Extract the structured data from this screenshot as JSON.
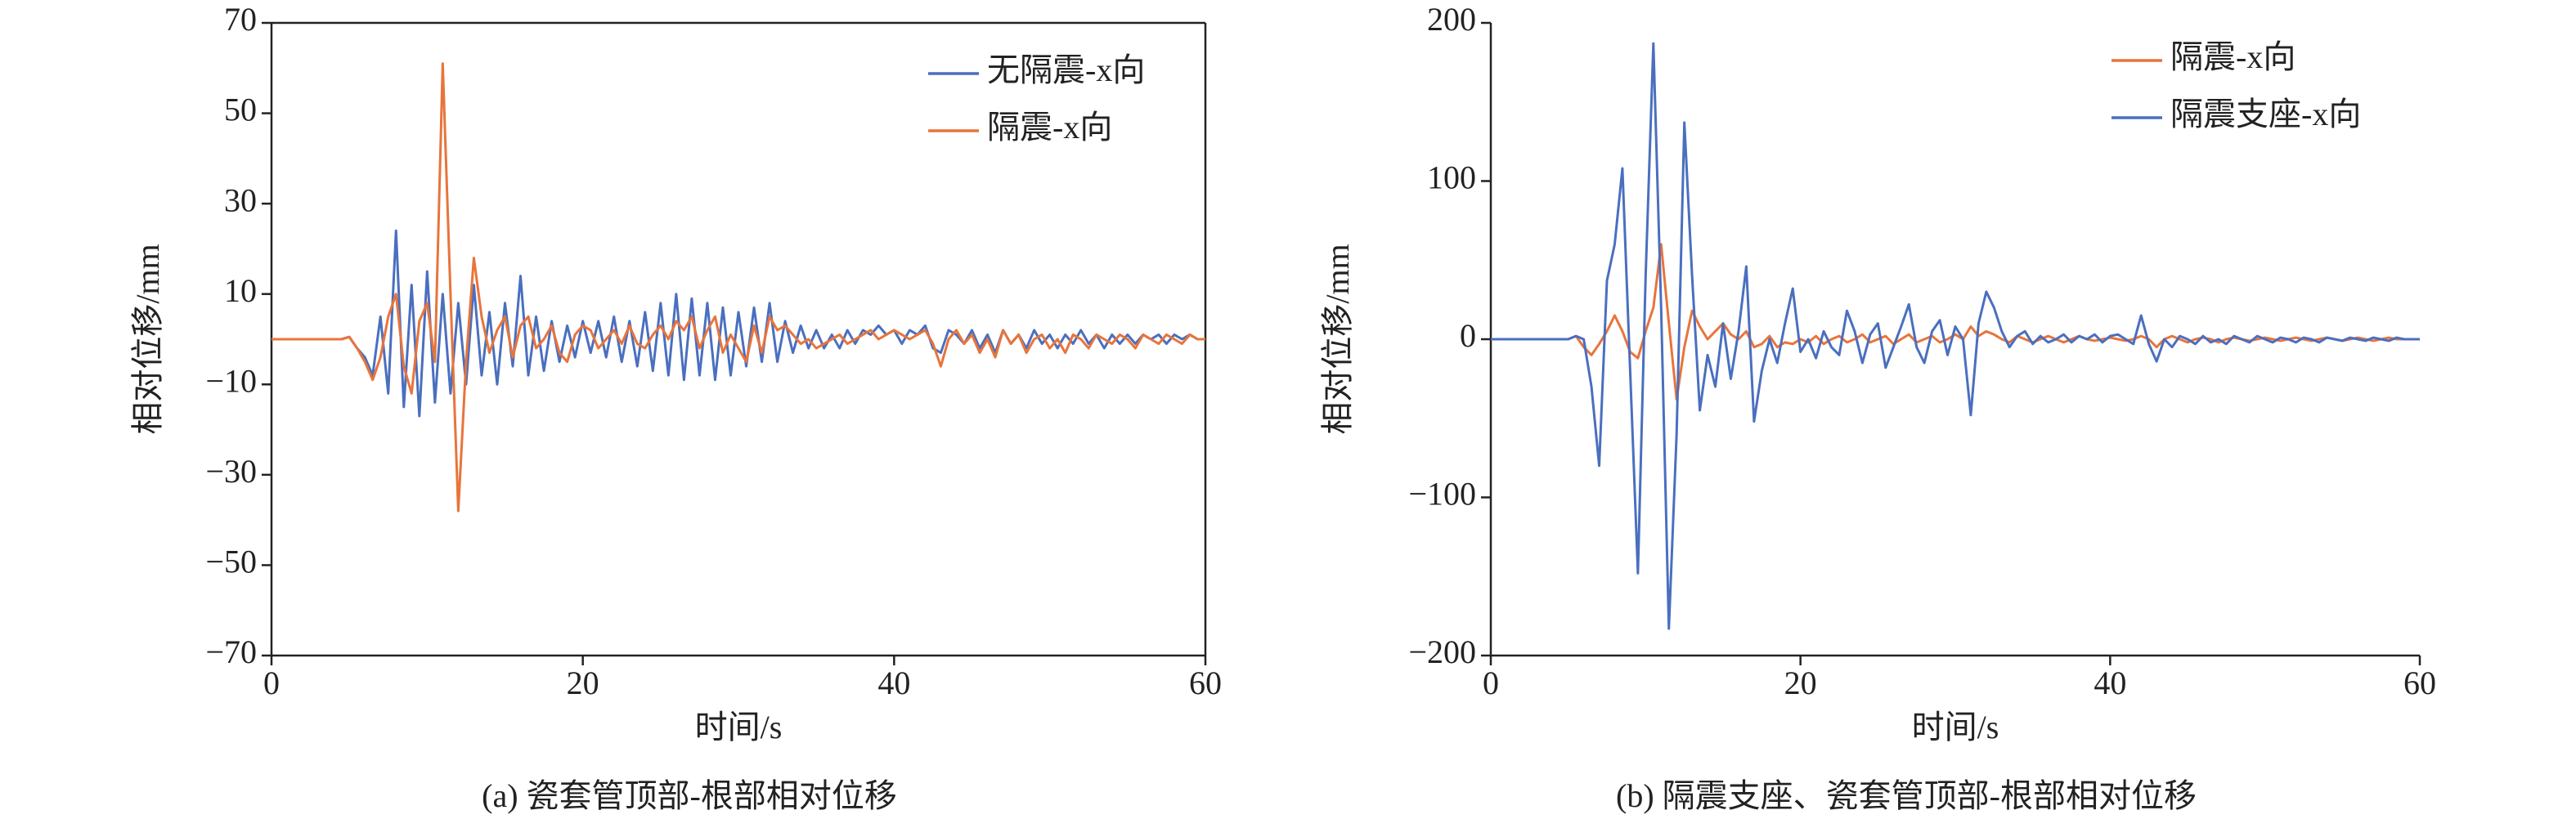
{
  "chart_data": [
    {
      "type": "line",
      "title": "(a) 瓷套管顶部-根部相对位移",
      "xlabel": "时间/s",
      "ylabel": "相对位移/mm",
      "legend": "upper right",
      "xlim": [
        0,
        60
      ],
      "xticks": [
        0,
        20,
        40,
        60
      ],
      "ylim": [
        -70,
        70
      ],
      "yticks": [
        {
          "value": -70,
          "label": "−70"
        },
        {
          "value": -50,
          "label": "−50"
        },
        {
          "value": -30,
          "label": "−30"
        },
        {
          "value": -10,
          "label": "−10"
        },
        10,
        30,
        50,
        70
      ],
      "x": [
        0,
        0.5,
        1,
        1.5,
        2,
        2.5,
        3,
        3.5,
        4,
        4.5,
        5,
        5.5,
        6,
        6.5,
        7,
        7.5,
        8,
        8.5,
        9,
        9.5,
        10,
        10.5,
        11,
        11.5,
        12,
        12.5,
        13,
        13.5,
        14,
        14.5,
        15,
        15.5,
        16,
        16.5,
        17,
        17.5,
        18,
        18.5,
        19,
        19.5,
        20,
        20.5,
        21,
        21.5,
        22,
        22.5,
        23,
        23.5,
        24,
        24.5,
        25,
        25.5,
        26,
        26.5,
        27,
        27.5,
        28,
        28.5,
        29,
        29.5,
        30,
        30.5,
        31,
        31.5,
        32,
        32.5,
        33,
        33.5,
        34,
        34.5,
        35,
        35.5,
        36,
        36.5,
        37,
        37.5,
        38,
        38.5,
        39,
        39.5,
        40,
        40.5,
        41,
        41.5,
        42,
        42.5,
        43,
        43.5,
        44,
        44.5,
        45,
        45.5,
        46,
        46.5,
        47,
        47.5,
        48,
        48.5,
        49,
        49.5,
        50,
        50.5,
        51,
        51.5,
        52,
        52.5,
        53,
        53.5,
        54,
        54.5,
        55,
        55.5,
        56,
        56.5,
        57,
        57.5,
        58,
        58.5,
        59,
        59.5,
        60
      ],
      "series": [
        {
          "name": "无隔震-x向",
          "color": "#4a6fbf",
          "values": [
            0,
            0,
            0,
            0,
            0,
            0,
            0,
            0,
            0,
            0,
            0.5,
            -2,
            -4,
            -8,
            5,
            -12,
            24,
            -15,
            12,
            -17,
            15,
            -14,
            10,
            -12,
            8,
            -10,
            12,
            -8,
            6,
            -10,
            8,
            -6,
            14,
            -8,
            5,
            -7,
            4,
            -5,
            3,
            -4,
            4,
            -3,
            4,
            -4,
            5,
            -5,
            4,
            -6,
            6,
            -7,
            8,
            -8,
            10,
            -9,
            9,
            -8,
            8,
            -9,
            7,
            -8,
            6,
            -6,
            7,
            -5,
            8,
            -5,
            4,
            -3,
            3,
            -2,
            2,
            -2,
            1,
            -2,
            2,
            -1,
            2,
            1,
            3,
            1,
            2,
            -1,
            2,
            1,
            3,
            -2,
            -3,
            2,
            1,
            -1,
            2,
            -2,
            1,
            -3,
            2,
            -1,
            1,
            -2,
            2,
            -1,
            1,
            -2,
            1,
            -1,
            2,
            -1,
            1,
            -2,
            1,
            -1,
            1,
            -1,
            1,
            0,
            1,
            -1,
            1,
            0,
            1,
            0,
            0
          ]
        },
        {
          "name": "隔震-x向",
          "color": "#e8743b",
          "values": [
            0,
            0,
            0,
            0,
            0,
            0,
            0,
            0,
            0,
            0,
            0.5,
            -2,
            -5,
            -9,
            -4,
            5,
            10,
            -6,
            -12,
            4,
            8,
            -5,
            61,
            10,
            -38,
            -5,
            18,
            5,
            -3,
            2,
            5,
            -4,
            3,
            5,
            -2,
            0,
            3,
            -3,
            -5,
            1,
            3,
            2,
            -2,
            0,
            2,
            -1,
            3,
            -1,
            -2,
            1,
            3,
            0,
            4,
            2,
            5,
            -2,
            2,
            5,
            -3,
            1,
            -2,
            -5,
            3,
            -3,
            5,
            2,
            3,
            1,
            -1,
            0,
            -2,
            -1,
            0,
            1,
            -1,
            0,
            1,
            2,
            0,
            1,
            2,
            1,
            0,
            1,
            2,
            -1,
            -6,
            0,
            2,
            -1,
            1,
            -3,
            0,
            -4,
            2,
            -1,
            1,
            -3,
            0,
            1,
            -2,
            0,
            -3,
            1,
            0,
            -2,
            1,
            0,
            -1,
            1,
            0,
            -2,
            1,
            0,
            -1,
            1,
            0,
            -1,
            1,
            0,
            0
          ]
        }
      ]
    },
    {
      "type": "line",
      "title": "(b) 隔震支座、瓷套管顶部-根部相对位移",
      "xlabel": "时间/s",
      "ylabel": "相对位移/mm",
      "legend": "upper right",
      "xlim": [
        0,
        60
      ],
      "xticks": [
        0,
        20,
        40,
        60
      ],
      "ylim": [
        -200,
        200
      ],
      "yticks": [
        {
          "value": -200,
          "label": "−200"
        },
        {
          "value": -100,
          "label": "−100"
        },
        0,
        100,
        200
      ],
      "x": [
        0,
        0.5,
        1,
        1.5,
        2,
        2.5,
        3,
        3.5,
        4,
        4.5,
        5,
        5.5,
        6,
        6.5,
        7,
        7.5,
        8,
        8.5,
        9,
        9.5,
        10,
        10.5,
        11,
        11.5,
        12,
        12.5,
        13,
        13.5,
        14,
        14.5,
        15,
        15.5,
        16,
        16.5,
        17,
        17.5,
        18,
        18.5,
        19,
        19.5,
        20,
        20.5,
        21,
        21.5,
        22,
        22.5,
        23,
        23.5,
        24,
        24.5,
        25,
        25.5,
        26,
        26.5,
        27,
        27.5,
        28,
        28.5,
        29,
        29.5,
        30,
        30.5,
        31,
        31.5,
        32,
        32.5,
        33,
        33.5,
        34,
        34.5,
        35,
        35.5,
        36,
        36.5,
        37,
        37.5,
        38,
        38.5,
        39,
        39.5,
        40,
        40.5,
        41,
        41.5,
        42,
        42.5,
        43,
        43.5,
        44,
        44.5,
        45,
        45.5,
        46,
        46.5,
        47,
        47.5,
        48,
        48.5,
        49,
        49.5,
        50,
        50.5,
        51,
        51.5,
        52,
        52.5,
        53,
        53.5,
        54,
        54.5,
        55,
        55.5,
        56,
        56.5,
        57,
        57.5,
        58,
        58.5,
        59,
        59.5,
        60
      ],
      "series": [
        {
          "name": "隔震-x向",
          "color": "#e8743b",
          "values": [
            0,
            0,
            0,
            0,
            0,
            0,
            0,
            0,
            0,
            0,
            0,
            2,
            -5,
            -10,
            -3,
            5,
            15,
            5,
            -8,
            -12,
            5,
            20,
            60,
            10,
            -38,
            -5,
            18,
            8,
            0,
            5,
            10,
            3,
            0,
            5,
            -5,
            -3,
            2,
            -5,
            -2,
            -3,
            0,
            -2,
            2,
            -3,
            0,
            2,
            -2,
            0,
            3,
            -2,
            0,
            2,
            -3,
            0,
            3,
            -2,
            0,
            2,
            -2,
            0,
            3,
            0,
            8,
            2,
            5,
            3,
            0,
            -2,
            2,
            0,
            -2,
            0,
            2,
            0,
            -2,
            0,
            2,
            0,
            -1,
            0,
            1,
            0,
            -1,
            0,
            2,
            0,
            -5,
            0,
            2,
            0,
            -2,
            0,
            1,
            0,
            -2,
            0,
            1,
            0,
            -1,
            0,
            1,
            0,
            -1,
            0,
            1,
            0,
            -1,
            0,
            1,
            0,
            -1,
            0,
            1,
            0,
            -1,
            0,
            1,
            0,
            0,
            0,
            0
          ]
        },
        {
          "name": "隔震支座-x向",
          "color": "#4a6fbf",
          "values": [
            0,
            0,
            0,
            0,
            0,
            0,
            0,
            0,
            0,
            0,
            0,
            2,
            0,
            -30,
            -80,
            37,
            60,
            108,
            -20,
            -148,
            40,
            187,
            20,
            -183,
            -60,
            137,
            40,
            -45,
            -10,
            -30,
            10,
            -25,
            5,
            46,
            -52,
            -20,
            0,
            -15,
            10,
            32,
            -8,
            0,
            -12,
            5,
            -5,
            -10,
            18,
            5,
            -15,
            3,
            10,
            -18,
            -5,
            8,
            22,
            -5,
            -15,
            5,
            12,
            -10,
            8,
            0,
            -48,
            10,
            30,
            20,
            5,
            -5,
            2,
            5,
            -3,
            2,
            -2,
            0,
            3,
            -2,
            2,
            0,
            3,
            -2,
            2,
            3,
            0,
            -3,
            15,
            -3,
            -14,
            0,
            -5,
            2,
            0,
            -3,
            2,
            -2,
            0,
            -3,
            2,
            0,
            -2,
            2,
            0,
            -2,
            1,
            0,
            -2,
            1,
            0,
            -2,
            1,
            0,
            -1,
            1,
            0,
            -1,
            1,
            0,
            -1,
            1,
            0,
            0,
            0
          ]
        }
      ]
    }
  ]
}
